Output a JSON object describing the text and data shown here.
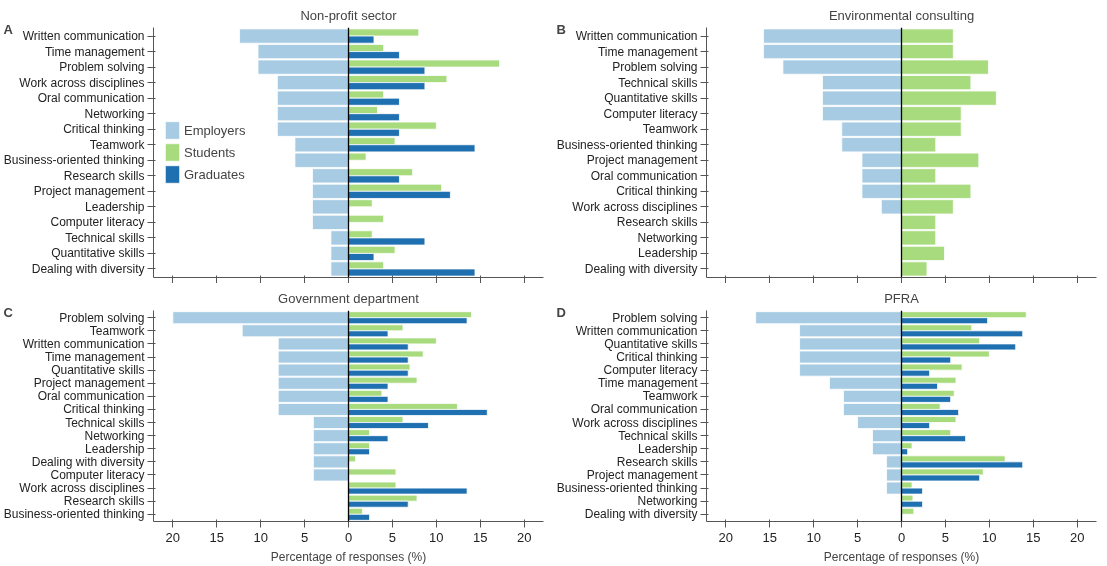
{
  "chart_data": [
    {
      "type": "bar",
      "orientation": "horizontal",
      "title": "Non-profit sector",
      "annotations": [
        "A"
      ],
      "categories": [
        "Written communication",
        "Time management",
        "Problem solving",
        "Work across disciplines",
        "Oral communication",
        "Networking",
        "Critical thinking",
        "Teamwork",
        "Business-oriented thinking",
        "Research skills",
        "Project management",
        "Leadership",
        "Computer literacy",
        "Technical skills",
        "Quantitative skills",
        "Dealing with diversity"
      ],
      "series": [
        {
          "name": "Employers",
          "color": "#a6cbe3",
          "values": [
            -12.4,
            -10.3,
            -10.3,
            -8.1,
            -8.1,
            -8.1,
            -8.1,
            -6.1,
            -6.1,
            -4.1,
            -4.1,
            -4.1,
            -4.1,
            -2.0,
            -2.0,
            -2.0
          ]
        },
        {
          "name": "Students",
          "color": "#a8db7e",
          "values": [
            8.0,
            4.0,
            17.2,
            11.2,
            4.0,
            3.3,
            10.0,
            5.3,
            2.0,
            7.3,
            10.6,
            2.7,
            4.0,
            2.7,
            5.3,
            4.0
          ]
        },
        {
          "name": "Graduates",
          "color": "#1f70b0",
          "values": [
            2.9,
            5.8,
            8.7,
            8.7,
            5.8,
            5.8,
            5.8,
            14.4,
            null,
            5.8,
            11.6,
            null,
            null,
            8.7,
            2.9,
            14.4
          ]
        }
      ],
      "xlim": [
        -22.2,
        22.2
      ],
      "xticks": [
        {
          "value": -20,
          "label": null
        },
        {
          "value": -15,
          "label": null
        },
        {
          "value": -10,
          "label": null
        },
        {
          "value": -5,
          "label": null
        },
        {
          "value": 0,
          "label": null
        },
        {
          "value": 5,
          "label": null
        },
        {
          "value": 10,
          "label": null
        },
        {
          "value": 15,
          "label": null
        },
        {
          "value": 20,
          "label": null
        }
      ],
      "tick_labels": "y",
      "ref_lines": [
        {
          "axis": "x",
          "value": 0,
          "color": "#000000"
        }
      ],
      "grid": false,
      "legend": "left"
    },
    {
      "type": "bar",
      "orientation": "horizontal",
      "title": "Environmental consulting",
      "annotations": [
        "B"
      ],
      "categories": [
        "Written communication",
        "Time management",
        "Problem solving",
        "Technical skills",
        "Quantitative skills",
        "Computer literacy",
        "Teamwork",
        "Business-oriented thinking",
        "Project management",
        "Oral communication",
        "Critical thinking",
        "Work across disciplines",
        "Research skills",
        "Networking",
        "Leadership",
        "Dealing with diversity"
      ],
      "series": [
        {
          "color": "#a6cbe3",
          "values": [
            -15.7,
            -15.7,
            -13.5,
            -9.0,
            -9.0,
            -9.0,
            -6.8,
            -6.8,
            -4.5,
            -4.5,
            -4.5,
            -2.3,
            null,
            null,
            null,
            null
          ]
        },
        {
          "color": "#a8db7e",
          "values": [
            5.9,
            5.9,
            9.9,
            7.9,
            10.8,
            6.8,
            6.8,
            3.9,
            8.8,
            3.9,
            7.9,
            5.9,
            3.9,
            3.9,
            4.9,
            2.9
          ]
        }
      ],
      "xlim": [
        -22.2,
        22.2
      ],
      "xticks": [
        {
          "value": -20,
          "label": null
        },
        {
          "value": -15,
          "label": null
        },
        {
          "value": -10,
          "label": null
        },
        {
          "value": -5,
          "label": null
        },
        {
          "value": 0,
          "label": null
        },
        {
          "value": 5,
          "label": null
        },
        {
          "value": 10,
          "label": null
        },
        {
          "value": 15,
          "label": null
        },
        {
          "value": 20,
          "label": null
        }
      ],
      "tick_labels": "y",
      "ref_lines": [
        {
          "axis": "x",
          "value": 0,
          "color": "#000000"
        }
      ],
      "grid": false,
      "stacked": true
    },
    {
      "type": "bar",
      "orientation": "horizontal",
      "title": "Government department",
      "annotations": [
        "C"
      ],
      "xlabel": "Percentage of responses (%)",
      "categories": [
        "Problem solving",
        "Teamwork",
        "Written communication",
        "Time management",
        "Quantitative skills",
        "Project management",
        "Oral communication",
        "Critical thinking",
        "Technical skills",
        "Networking",
        "Leadership",
        "Dealing with diversity",
        "Computer literacy",
        "Work across disciplines",
        "Research skills",
        "Business-oriented thinking"
      ],
      "series": [
        {
          "color": "#a6cbe3",
          "values": [
            -20.0,
            -12.1,
            -8.0,
            -8.0,
            -8.0,
            -8.0,
            -8.0,
            -8.0,
            -4.0,
            -4.0,
            -4.0,
            -4.0,
            -4.0,
            null,
            null,
            null
          ]
        },
        {
          "color": "#a8db7e",
          "values": [
            14.0,
            6.2,
            10.0,
            8.5,
            7.0,
            7.8,
            3.8,
            12.4,
            6.2,
            2.4,
            2.4,
            0.8,
            5.4,
            5.4,
            7.8,
            1.6
          ]
        },
        {
          "color": "#1f70b0",
          "values": [
            13.5,
            4.5,
            6.8,
            6.8,
            6.8,
            4.5,
            4.5,
            15.8,
            9.1,
            4.5,
            2.4,
            null,
            null,
            13.5,
            6.8,
            2.4
          ]
        }
      ],
      "xlim": [
        -22.2,
        22.2
      ],
      "xticks": [
        {
          "value": -20,
          "label": "20"
        },
        {
          "value": -15,
          "label": "15"
        },
        {
          "value": -10,
          "label": "10"
        },
        {
          "value": -5,
          "label": "5"
        },
        0,
        5,
        10,
        15,
        20
      ],
      "ref_lines": [
        {
          "axis": "x",
          "value": 0,
          "color": "#000000"
        }
      ],
      "grid": false
    },
    {
      "type": "bar",
      "orientation": "horizontal",
      "title": "PFRA",
      "annotations": [
        "D"
      ],
      "xlabel": "Percentage of responses (%)",
      "categories": [
        "Problem solving",
        "Written communication",
        "Quantitative skills",
        "Critical thinking",
        "Computer literacy",
        "Time management",
        "Teamwork",
        "Oral communication",
        "Work across disciplines",
        "Technical skills",
        "Leadership",
        "Research skills",
        "Project management",
        "Business-oriented thinking",
        "Networking",
        "Dealing with diversity"
      ],
      "series": [
        {
          "color": "#a6cbe3",
          "values": [
            -16.6,
            -11.6,
            -11.6,
            -11.6,
            -11.6,
            -8.2,
            -6.6,
            -6.6,
            -5.0,
            -3.3,
            -3.3,
            -1.7,
            -1.7,
            -1.7,
            null,
            null
          ]
        },
        {
          "color": "#a8db7e",
          "values": [
            14.2,
            8.0,
            8.9,
            10.0,
            6.9,
            6.2,
            6.0,
            4.4,
            6.2,
            5.6,
            1.2,
            11.8,
            9.3,
            1.2,
            1.3,
            1.4
          ]
        },
        {
          "color": "#1f70b0",
          "values": [
            9.8,
            13.8,
            13.0,
            5.6,
            3.2,
            4.1,
            5.6,
            6.5,
            3.2,
            7.3,
            0.7,
            13.8,
            8.9,
            2.4,
            2.4,
            null
          ]
        }
      ],
      "xlim": [
        -22.2,
        22.2
      ],
      "xticks": [
        {
          "value": -20,
          "label": "20"
        },
        {
          "value": -15,
          "label": "15"
        },
        {
          "value": -10,
          "label": "10"
        },
        {
          "value": -5,
          "label": "5"
        },
        0,
        5,
        10,
        15,
        20
      ],
      "ref_lines": [
        {
          "axis": "x",
          "value": 0,
          "color": "#000000"
        }
      ],
      "grid": false
    }
  ]
}
